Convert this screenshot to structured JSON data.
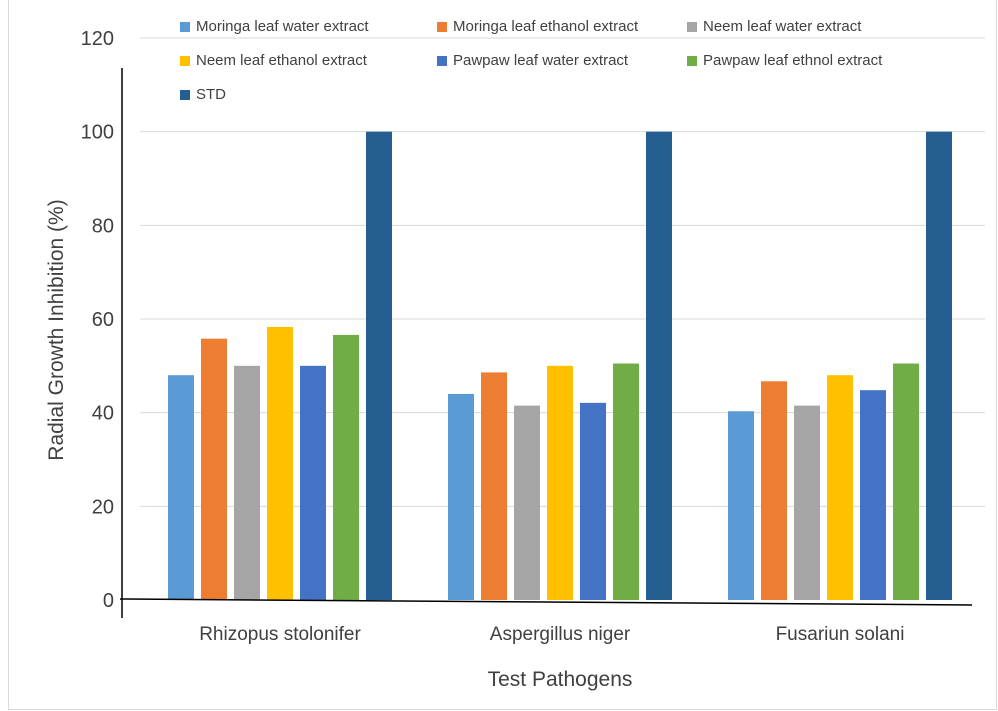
{
  "chart_data": {
    "type": "bar",
    "title": "",
    "xlabel": "Test Pathogens",
    "ylabel": "Radial Growth Inhibition (%)",
    "ylim": [
      0,
      120
    ],
    "yticks": [
      "0",
      "20",
      "40",
      "60",
      "80",
      "100",
      "120"
    ],
    "grid": true,
    "legend_position": "top",
    "categories": [
      "Rhizopus stolonifer",
      "Aspergillus niger",
      "Fusariun solani"
    ],
    "series": [
      {
        "name": "Moringa leaf water extract",
        "color": "#5b9bd5",
        "values": [
          48.0,
          44.0,
          40.3
        ]
      },
      {
        "name": "Moringa leaf ethanol extract",
        "color": "#ed7d31",
        "values": [
          55.8,
          48.6,
          46.7
        ]
      },
      {
        "name": "Neem leaf water extract",
        "color": "#a5a5a5",
        "values": [
          50.0,
          41.5,
          41.5
        ]
      },
      {
        "name": "Neem leaf ethanol extract",
        "color": "#ffc000",
        "values": [
          58.3,
          50.0,
          48.0
        ]
      },
      {
        "name": "Pawpaw leaf water extract",
        "color": "#4472c4",
        "values": [
          50.0,
          42.1,
          44.8
        ]
      },
      {
        "name": "Pawpaw leaf ethnol extract",
        "color": "#70ad47",
        "values": [
          56.6,
          50.5,
          50.5
        ]
      },
      {
        "name": "STD",
        "color": "#255e91",
        "values": [
          100,
          100,
          100
        ]
      }
    ]
  }
}
